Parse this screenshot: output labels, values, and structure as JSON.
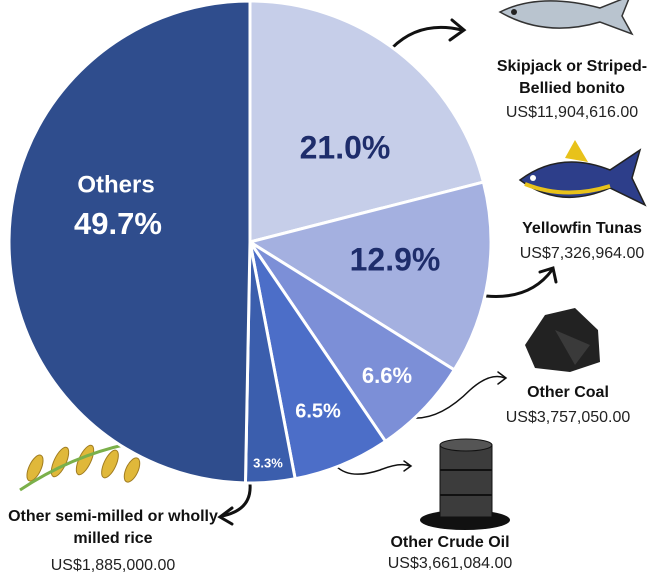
{
  "chart_data": {
    "type": "pie",
    "categories": [
      "Skipjack or Striped-Bellied bonito",
      "Yellowfin Tunas",
      "Other Coal",
      "Other Crude Oil",
      "Other semi-milled or wholly milled rice",
      "Others"
    ],
    "values": [
      21.0,
      12.9,
      6.6,
      6.5,
      3.3,
      49.7
    ],
    "value_labels": [
      "21.0%",
      "12.9%",
      "6.6%",
      "6.5%",
      "3.3%",
      "49.7%"
    ],
    "amounts": [
      "US$11,904,616.00",
      "US$7,326,964.00",
      "US$3,757,050.00",
      "US$3,661,084.00",
      "US$1,885,000.00"
    ],
    "colors": [
      "#c6cee9",
      "#a4b0e0",
      "#7c8fd7",
      "#4c6ec8",
      "#3b5ead",
      "#2f4d8d"
    ]
  }
}
